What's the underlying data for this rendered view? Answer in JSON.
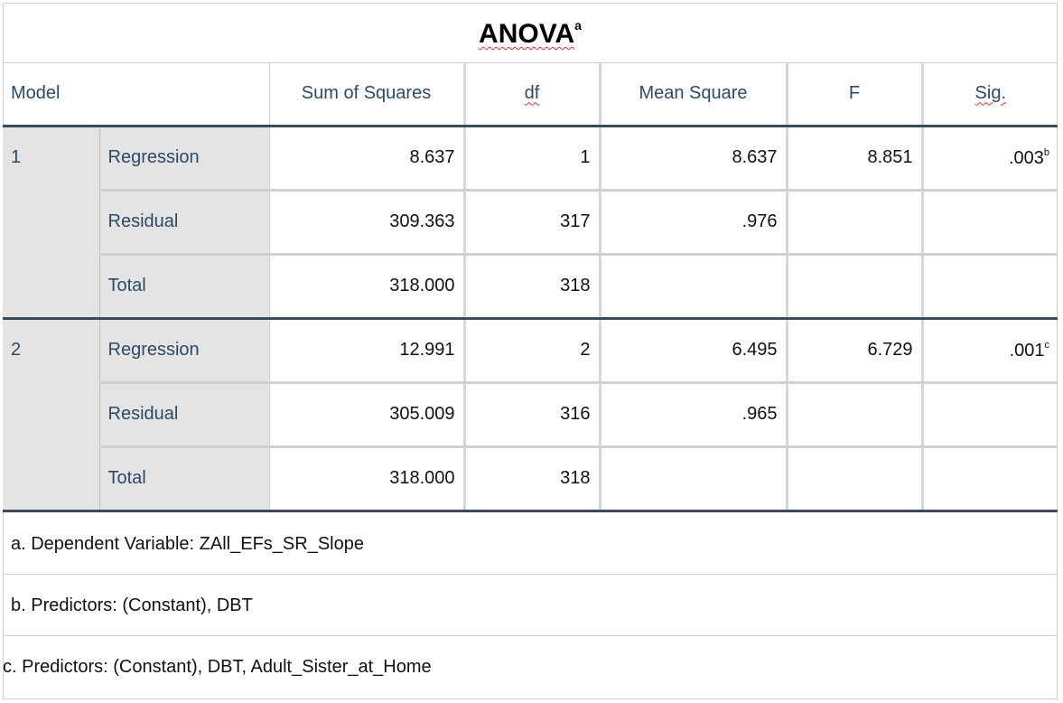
{
  "title": "ANOVA",
  "title_sup": "a",
  "headers": {
    "model": "Model",
    "sum_of_squares": "Sum of Squares",
    "df": "df",
    "mean_square": "Mean Square",
    "f": "F",
    "sig": "Sig."
  },
  "models": [
    {
      "model": "1",
      "rows": [
        {
          "label": "Regression",
          "ss": "8.637",
          "df": "1",
          "ms": "8.637",
          "f": "8.851",
          "sig": ".003",
          "sig_sup": "b"
        },
        {
          "label": "Residual",
          "ss": "309.363",
          "df": "317",
          "ms": ".976",
          "f": "",
          "sig": "",
          "sig_sup": ""
        },
        {
          "label": "Total",
          "ss": "318.000",
          "df": "318",
          "ms": "",
          "f": "",
          "sig": "",
          "sig_sup": ""
        }
      ]
    },
    {
      "model": "2",
      "rows": [
        {
          "label": "Regression",
          "ss": "12.991",
          "df": "2",
          "ms": "6.495",
          "f": "6.729",
          "sig": ".001",
          "sig_sup": "c"
        },
        {
          "label": "Residual",
          "ss": "305.009",
          "df": "316",
          "ms": ".965",
          "f": "",
          "sig": "",
          "sig_sup": ""
        },
        {
          "label": "Total",
          "ss": "318.000",
          "df": "318",
          "ms": "",
          "f": "",
          "sig": "",
          "sig_sup": ""
        }
      ]
    }
  ],
  "footnotes": {
    "a": "a. Dependent Variable: ZAll_EFs_SR_Slope",
    "b": "b. Predictors: (Constant), DBT",
    "c": "c. Predictors: (Constant), DBT, Adult_Sister_at_Home"
  }
}
